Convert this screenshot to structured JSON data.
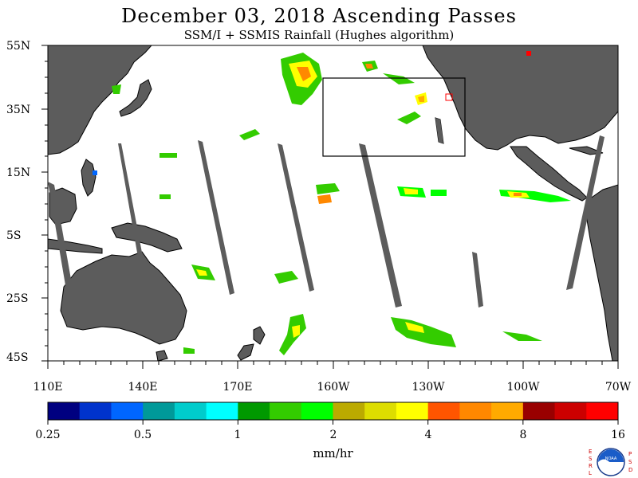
{
  "title": "December 03, 2018  Ascending Passes",
  "subtitle": "SSM/I + SSMIS Rainfall (Hughes algorithm)",
  "lat_labels": [
    "55N",
    "35N",
    "15N",
    "5S",
    "25S",
    "45S"
  ],
  "lon_labels": [
    "110E",
    "140E",
    "170E",
    "160W",
    "130W",
    "100W",
    "70W"
  ],
  "colorbar": {
    "colors": [
      "#000080",
      "#0033cc",
      "#0066ff",
      "#009999",
      "#00cccc",
      "#00ffff",
      "#009900",
      "#33cc00",
      "#00ff00",
      "#bbaa00",
      "#dddd00",
      "#ffff00",
      "#ff5500",
      "#ff8800",
      "#ffaa00",
      "#990000",
      "#cc0000",
      "#ff0000"
    ],
    "tick_labels": [
      "0.25",
      "0.5",
      "1",
      "2",
      "4",
      "8",
      "16"
    ]
  },
  "units": "mm/hr",
  "logo_letters_left": [
    "E",
    "S",
    "R",
    "L"
  ],
  "logo_letters_right": [
    "P",
    "S",
    "D"
  ],
  "logo_text": "NOAA"
}
